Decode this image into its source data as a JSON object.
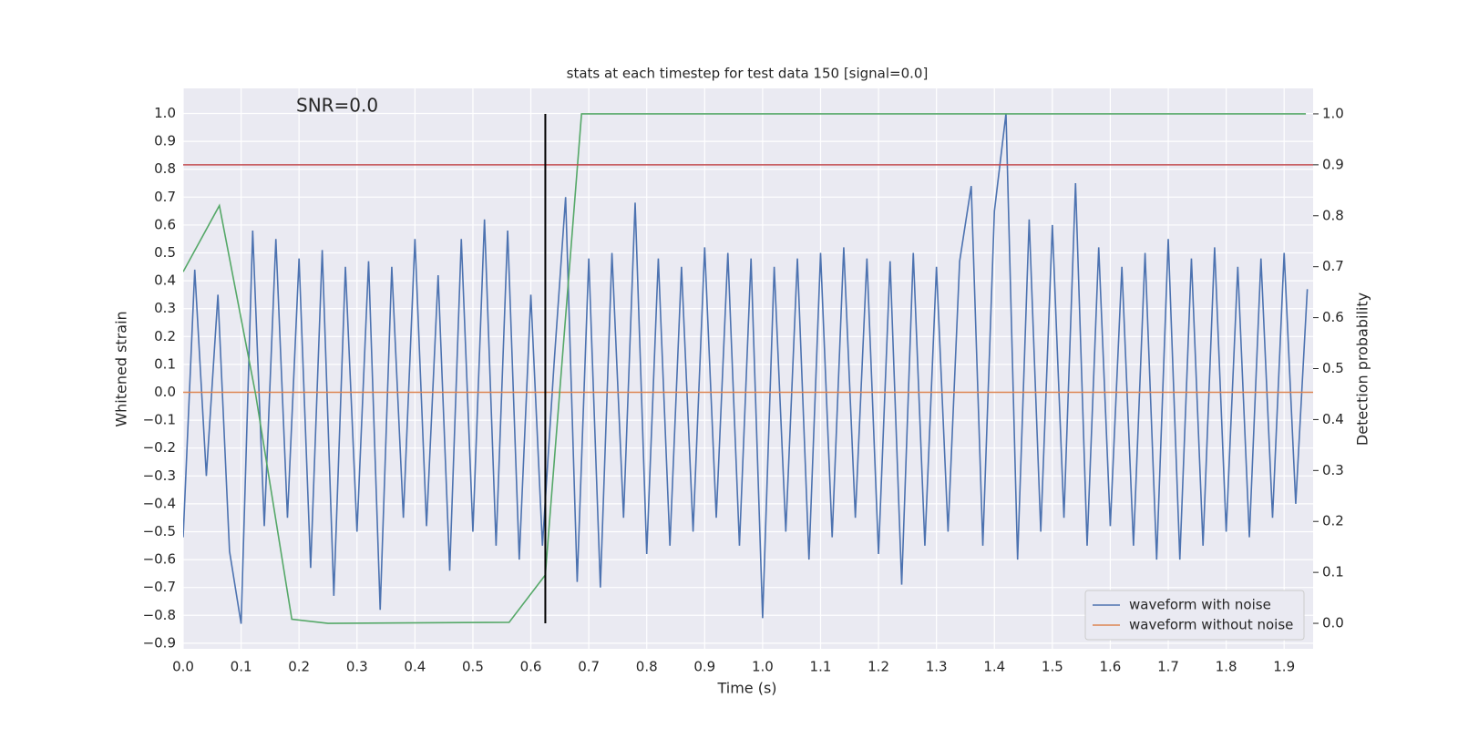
{
  "chart_data": {
    "type": "line",
    "title": "stats at each timestep for test data 150 [signal=0.0]",
    "annotation": "SNR=0.0",
    "xlabel": "Time (s)",
    "ylabel": "Whitened strain",
    "y2label": "Detection probability",
    "xlim": [
      0,
      1.95
    ],
    "ylim": [
      -0.92,
      1.09
    ],
    "y2lim": [
      -0.05,
      1.05
    ],
    "grid": true,
    "legend": "lower right",
    "xticks": [
      {
        "value": 0,
        "label": "0.0"
      },
      {
        "value": 0.1,
        "label": "0.1"
      },
      {
        "value": 0.2,
        "label": "0.2"
      },
      {
        "value": 0.3,
        "label": "0.3"
      },
      {
        "value": 0.4,
        "label": "0.4"
      },
      {
        "value": 0.5,
        "label": "0.5"
      },
      {
        "value": 0.6,
        "label": "0.6"
      },
      {
        "value": 0.7,
        "label": "0.7"
      },
      {
        "value": 0.8,
        "label": "0.8"
      },
      {
        "value": 0.9,
        "label": "0.9"
      },
      {
        "value": 1,
        "label": "1.0"
      },
      {
        "value": 1.1,
        "label": "1.1"
      },
      {
        "value": 1.2,
        "label": "1.2"
      },
      {
        "value": 1.3,
        "label": "1.3"
      },
      {
        "value": 1.4,
        "label": "1.4"
      },
      {
        "value": 1.5,
        "label": "1.5"
      },
      {
        "value": 1.6,
        "label": "1.6"
      },
      {
        "value": 1.7,
        "label": "1.7"
      },
      {
        "value": 1.8,
        "label": "1.8"
      },
      {
        "value": 1.9,
        "label": "1.9"
      }
    ],
    "yticks": [
      {
        "value": -0.9,
        "label": "−0.9"
      },
      {
        "value": -0.8,
        "label": "−0.8"
      },
      {
        "value": -0.7,
        "label": "−0.7"
      },
      {
        "value": -0.6,
        "label": "−0.6"
      },
      {
        "value": -0.5,
        "label": "−0.5"
      },
      {
        "value": -0.4,
        "label": "−0.4"
      },
      {
        "value": -0.3,
        "label": "−0.3"
      },
      {
        "value": -0.2,
        "label": "−0.2"
      },
      {
        "value": -0.1,
        "label": "−0.1"
      },
      {
        "value": 0,
        "label": "0.0"
      },
      {
        "value": 0.1,
        "label": "0.1"
      },
      {
        "value": 0.2,
        "label": "0.2"
      },
      {
        "value": 0.3,
        "label": "0.3"
      },
      {
        "value": 0.4,
        "label": "0.4"
      },
      {
        "value": 0.5,
        "label": "0.5"
      },
      {
        "value": 0.6,
        "label": "0.6"
      },
      {
        "value": 0.7,
        "label": "0.7"
      },
      {
        "value": 0.8,
        "label": "0.8"
      },
      {
        "value": 0.9,
        "label": "0.9"
      },
      {
        "value": 1,
        "label": "1.0"
      }
    ],
    "y2ticks": [
      {
        "value": 0,
        "label": "0.0"
      },
      {
        "value": 0.1,
        "label": "0.1"
      },
      {
        "value": 0.2,
        "label": "0.2"
      },
      {
        "value": 0.3,
        "label": "0.3"
      },
      {
        "value": 0.4,
        "label": "0.4"
      },
      {
        "value": 0.5,
        "label": "0.5"
      },
      {
        "value": 0.6,
        "label": "0.6"
      },
      {
        "value": 0.7,
        "label": "0.7"
      },
      {
        "value": 0.8,
        "label": "0.8"
      },
      {
        "value": 0.9,
        "label": "0.9"
      },
      {
        "value": 1,
        "label": "1.0"
      }
    ],
    "series": [
      {
        "name": "waveform with noise",
        "color": "#4c72b0",
        "x": [
          0,
          0.02,
          0.04,
          0.06,
          0.08,
          0.1,
          0.12,
          0.14,
          0.16,
          0.18,
          0.2,
          0.22,
          0.24,
          0.26,
          0.28,
          0.3,
          0.32,
          0.34,
          0.36,
          0.38,
          0.4,
          0.42,
          0.44,
          0.46,
          0.48,
          0.5,
          0.52,
          0.54,
          0.56,
          0.58,
          0.6,
          0.62,
          0.64,
          0.66,
          0.68,
          0.7,
          0.72,
          0.74,
          0.76,
          0.78,
          0.8,
          0.82,
          0.84,
          0.86,
          0.88,
          0.9,
          0.92,
          0.94,
          0.96,
          0.98,
          1,
          1.02,
          1.04,
          1.06,
          1.08,
          1.1,
          1.12,
          1.14,
          1.16,
          1.18,
          1.2,
          1.22,
          1.24,
          1.26,
          1.28,
          1.3,
          1.32,
          1.34,
          1.36,
          1.38,
          1.4,
          1.42,
          1.44,
          1.46,
          1.48,
          1.5,
          1.52,
          1.54,
          1.56,
          1.58,
          1.6,
          1.62,
          1.64,
          1.66,
          1.68,
          1.7,
          1.72,
          1.74,
          1.76,
          1.78,
          1.8,
          1.82,
          1.84,
          1.86,
          1.88,
          1.9,
          1.92,
          1.94
        ],
        "values": [
          -0.52,
          0.44,
          -0.3,
          0.35,
          -0.57,
          -0.83,
          0.58,
          -0.48,
          0.55,
          -0.45,
          0.48,
          -0.63,
          0.51,
          -0.73,
          0.45,
          -0.5,
          0.47,
          -0.78,
          0.45,
          -0.45,
          0.55,
          -0.48,
          0.42,
          -0.64,
          0.55,
          -0.5,
          0.62,
          -0.55,
          0.58,
          -0.6,
          0.35,
          -0.55,
          0.1,
          0.7,
          -0.68,
          0.48,
          -0.7,
          0.5,
          -0.45,
          0.68,
          -0.58,
          0.48,
          -0.55,
          0.45,
          -0.5,
          0.52,
          -0.45,
          0.5,
          -0.55,
          0.48,
          -0.81,
          0.45,
          -0.5,
          0.48,
          -0.6,
          0.5,
          -0.52,
          0.52,
          -0.45,
          0.48,
          -0.58,
          0.47,
          -0.69,
          0.5,
          -0.55,
          0.45,
          -0.5,
          0.47,
          0.74,
          -0.55,
          0.65,
          1.0,
          -0.6,
          0.62,
          -0.5,
          0.6,
          -0.45,
          0.75,
          -0.55,
          0.52,
          -0.48,
          0.45,
          -0.55,
          0.5,
          -0.6,
          0.55,
          -0.6,
          0.48,
          -0.55,
          0.52,
          -0.5,
          0.45,
          -0.52,
          0.48,
          -0.45,
          0.5,
          -0.4,
          0.37
        ]
      },
      {
        "name": "waveform without noise",
        "color": "#dd8452",
        "x": [
          0,
          1.95
        ],
        "values": [
          0,
          0
        ]
      },
      {
        "color": "#55a868",
        "axis": "y2",
        "x": [
          0,
          0.0625,
          0.125,
          0.1875,
          0.25,
          0.5625,
          0.625,
          0.6875,
          0.75,
          1.9375
        ],
        "values": [
          0.69,
          0.82,
          0.45,
          0.008,
          0,
          0.002,
          0.095,
          1,
          1,
          1
        ]
      }
    ],
    "threshold": {
      "value": 0.9,
      "axis": "y2",
      "color": "#c44e52"
    },
    "marker": {
      "x": 0.625,
      "y2_from": 0,
      "y2_to": 1,
      "color": "#000000"
    }
  }
}
